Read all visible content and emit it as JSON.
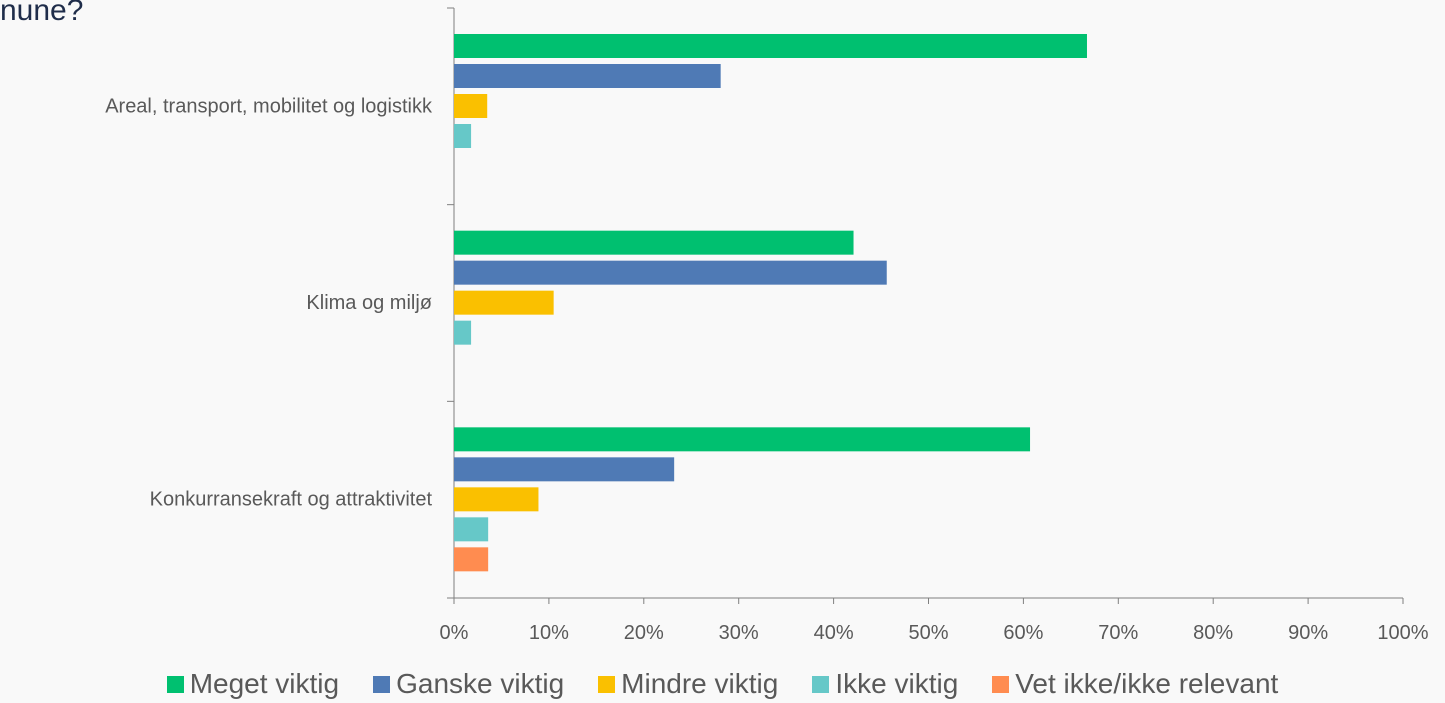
{
  "title_fragment": "nune?",
  "chart_data": {
    "type": "bar",
    "orientation": "horizontal",
    "categories": [
      "Areal, transport, mobilitet og logistikk",
      "Klima og miljø",
      "Konkurransekraft og attraktivitet"
    ],
    "series": [
      {
        "name": "Meget viktig",
        "color": "#00c070",
        "values": [
          66.7,
          42.1,
          60.7
        ]
      },
      {
        "name": "Ganske viktig",
        "color": "#4f7ab5",
        "values": [
          28.1,
          45.6,
          23.2
        ]
      },
      {
        "name": "Mindre viktig",
        "color": "#fac000",
        "values": [
          3.5,
          10.5,
          8.9
        ]
      },
      {
        "name": "Ikke viktig",
        "color": "#66c8c8",
        "values": [
          1.8,
          1.8,
          3.6
        ]
      },
      {
        "name": "Vet ikke/ikke relevant",
        "color": "#ff8c50",
        "values": [
          0,
          0,
          3.6
        ]
      }
    ],
    "xlim": [
      0,
      100
    ],
    "x_ticks": [
      "0%",
      "10%",
      "20%",
      "30%",
      "40%",
      "50%",
      "60%",
      "70%",
      "80%",
      "90%",
      "100%"
    ],
    "grid": false,
    "legend_position": "bottom"
  }
}
